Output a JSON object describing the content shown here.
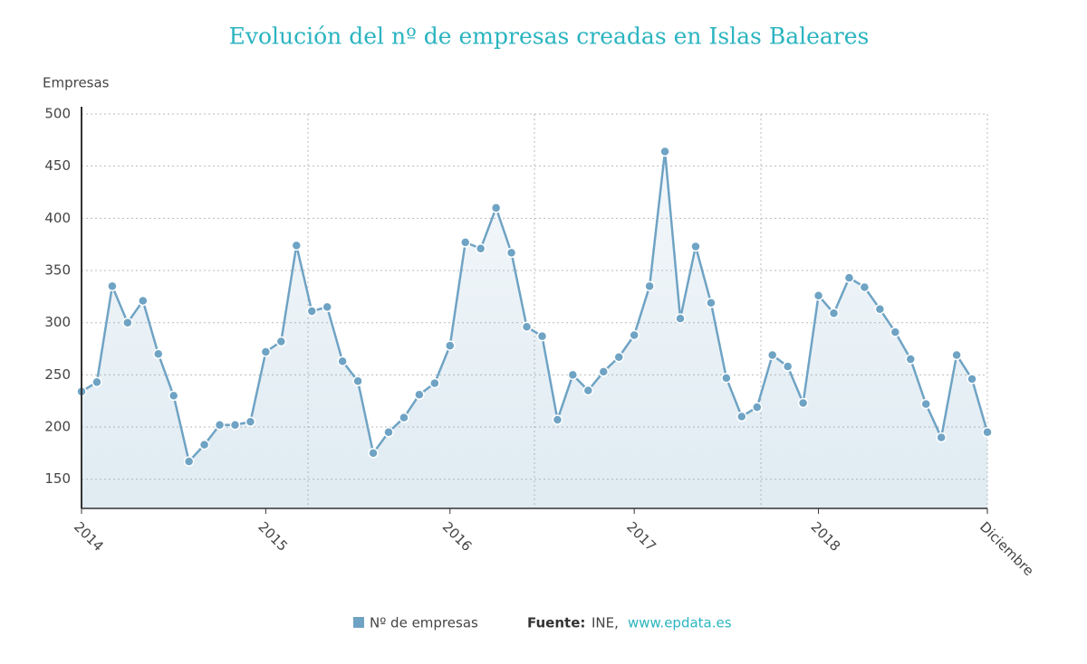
{
  "chart_data": {
    "type": "line",
    "title": "Evolución del nº de empresas creadas en Islas Baleares",
    "y_label": "Empresas",
    "categories": [
      "2014",
      null,
      null,
      null,
      null,
      null,
      null,
      null,
      null,
      null,
      null,
      null,
      "2015",
      null,
      null,
      null,
      null,
      null,
      null,
      null,
      null,
      null,
      null,
      null,
      "2016",
      null,
      null,
      null,
      null,
      null,
      null,
      null,
      null,
      null,
      null,
      null,
      "2017",
      null,
      null,
      null,
      null,
      null,
      null,
      null,
      null,
      null,
      null,
      null,
      "2018",
      null,
      null,
      null,
      null,
      null,
      null,
      null,
      null,
      null,
      null,
      "Diciembre"
    ],
    "series": [
      {
        "name": "Nº de empresas",
        "color": "#6fa3c4",
        "values": [
          234,
          243,
          335,
          300,
          321,
          270,
          230,
          167,
          183,
          202,
          202,
          205,
          272,
          282,
          374,
          311,
          315,
          263,
          244,
          175,
          195,
          209,
          231,
          242,
          278,
          377,
          371,
          410,
          367,
          296,
          287,
          207,
          250,
          235,
          253,
          267,
          288,
          335,
          464,
          304,
          373,
          319,
          247,
          210,
          219,
          269,
          258,
          223,
          326,
          309,
          343,
          334,
          313,
          291,
          265,
          222,
          190,
          269,
          246,
          195
        ]
      }
    ],
    "ylim": [
      122,
      500
    ],
    "yticks": [
      150,
      200,
      250,
      300,
      350,
      400,
      450,
      500
    ],
    "grid": true,
    "source": {
      "label": "Fuente:",
      "text": "INE,",
      "link": "www.epdata.es"
    }
  }
}
